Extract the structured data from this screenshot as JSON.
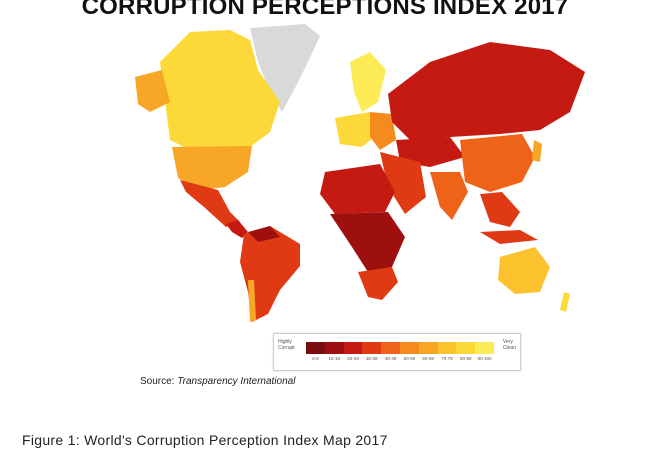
{
  "title": "CORRUPTION PERCEPTIONS INDEX 2017",
  "legend": {
    "low_label_line1": "Highly",
    "low_label_line2": "Corrupt",
    "high_label_line1": "Very",
    "high_label_line2": "Clean",
    "ranges": [
      {
        "label": "0-9",
        "color": "#7a0c12"
      },
      {
        "label": "10-19",
        "color": "#9e1010"
      },
      {
        "label": "20-29",
        "color": "#c51a12"
      },
      {
        "label": "30-39",
        "color": "#e03a14"
      },
      {
        "label": "40-49",
        "color": "#ef6318"
      },
      {
        "label": "50-59",
        "color": "#f58a1e"
      },
      {
        "label": "60-69",
        "color": "#f8a626"
      },
      {
        "label": "70-79",
        "color": "#fbc22e"
      },
      {
        "label": "80-89",
        "color": "#fcd838"
      },
      {
        "label": "90-100",
        "color": "#fdeb55"
      }
    ]
  },
  "colors": {
    "no_data": "#d9d9d9",
    "ocean": "#ffffff",
    "border": "#ffffff"
  },
  "source_prefix": "Source: ",
  "source_name": "Transparency International",
  "caption": "Figure 1: World's Corruption Perception Index Map 2017"
}
